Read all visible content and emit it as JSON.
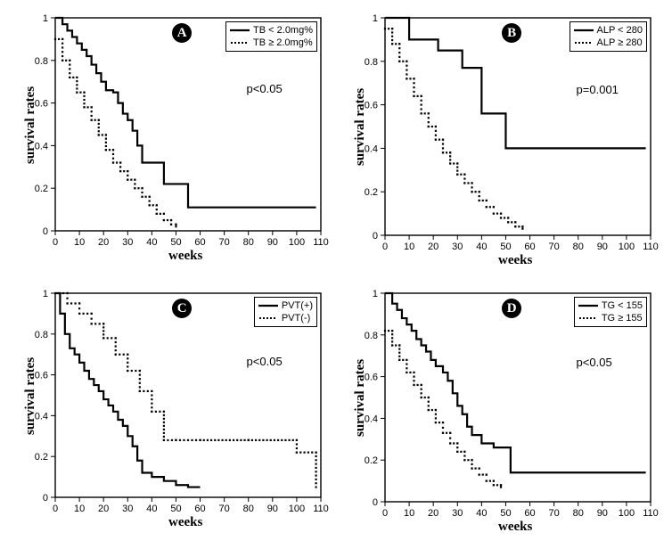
{
  "grid_color": "#000000",
  "background_color": "#ffffff",
  "ylabel": "survival rates",
  "xlabel": "weeks",
  "label_fontsize": 15,
  "tick_fontsize": 11,
  "legend_fontsize": 11,
  "pvalue_fontsize": 13,
  "ylim": [
    0,
    1
  ],
  "ytick_step": 0.2,
  "xlim": [
    0,
    110
  ],
  "xtick_step": 10,
  "solid_line_width": 2.2,
  "dashed_marker_size": 2.2,
  "dashed_marker_gap": 4.0,
  "panels": {
    "A": {
      "badge": "A",
      "pvalue": "p<0.05",
      "legend": [
        {
          "label": "TB < 2.0mg%",
          "style": "solid"
        },
        {
          "label": "TB ≥ 2.0mg%",
          "style": "dashed"
        }
      ],
      "series_solid_color": "#000000",
      "series_dashed_color": "#000000",
      "solid": [
        [
          0,
          1.0
        ],
        [
          3,
          0.97
        ],
        [
          5,
          0.94
        ],
        [
          7,
          0.91
        ],
        [
          9,
          0.88
        ],
        [
          11,
          0.85
        ],
        [
          13,
          0.82
        ],
        [
          15,
          0.78
        ],
        [
          17,
          0.74
        ],
        [
          19,
          0.7
        ],
        [
          21,
          0.66
        ],
        [
          24,
          0.65
        ],
        [
          26,
          0.6
        ],
        [
          28,
          0.55
        ],
        [
          30,
          0.52
        ],
        [
          32,
          0.47
        ],
        [
          34,
          0.4
        ],
        [
          36,
          0.32
        ],
        [
          40,
          0.32
        ],
        [
          45,
          0.22
        ],
        [
          52,
          0.22
        ],
        [
          55,
          0.11
        ],
        [
          108,
          0.11
        ]
      ],
      "dashed": [
        [
          0,
          0.9
        ],
        [
          3,
          0.8
        ],
        [
          6,
          0.72
        ],
        [
          9,
          0.65
        ],
        [
          12,
          0.58
        ],
        [
          15,
          0.52
        ],
        [
          18,
          0.45
        ],
        [
          21,
          0.38
        ],
        [
          24,
          0.32
        ],
        [
          27,
          0.28
        ],
        [
          30,
          0.24
        ],
        [
          33,
          0.2
        ],
        [
          36,
          0.16
        ],
        [
          39,
          0.12
        ],
        [
          42,
          0.08
        ],
        [
          45,
          0.05
        ],
        [
          48,
          0.03
        ],
        [
          50,
          0.02
        ]
      ]
    },
    "B": {
      "badge": "B",
      "pvalue": "p=0.001",
      "legend": [
        {
          "label": "ALP < 280",
          "style": "solid"
        },
        {
          "label": "ALP ≥ 280",
          "style": "dashed"
        }
      ],
      "series_solid_color": "#000000",
      "series_dashed_color": "#000000",
      "solid": [
        [
          0,
          1.0
        ],
        [
          8,
          1.0
        ],
        [
          10,
          0.9
        ],
        [
          20,
          0.9
        ],
        [
          22,
          0.85
        ],
        [
          30,
          0.85
        ],
        [
          32,
          0.77
        ],
        [
          38,
          0.77
        ],
        [
          40,
          0.56
        ],
        [
          48,
          0.56
        ],
        [
          50,
          0.4
        ],
        [
          108,
          0.4
        ]
      ],
      "dashed": [
        [
          0,
          0.95
        ],
        [
          3,
          0.88
        ],
        [
          6,
          0.8
        ],
        [
          9,
          0.72
        ],
        [
          12,
          0.64
        ],
        [
          15,
          0.56
        ],
        [
          18,
          0.5
        ],
        [
          21,
          0.44
        ],
        [
          24,
          0.38
        ],
        [
          27,
          0.33
        ],
        [
          30,
          0.28
        ],
        [
          33,
          0.24
        ],
        [
          36,
          0.2
        ],
        [
          39,
          0.16
        ],
        [
          42,
          0.13
        ],
        [
          45,
          0.1
        ],
        [
          48,
          0.08
        ],
        [
          51,
          0.06
        ],
        [
          54,
          0.04
        ],
        [
          57,
          0.03
        ]
      ]
    },
    "C": {
      "badge": "C",
      "pvalue": "p<0.05",
      "legend": [
        {
          "label": "PVT(+)",
          "style": "solid"
        },
        {
          "label": "PVT(-)",
          "style": "dashed"
        }
      ],
      "series_solid_color": "#000000",
      "series_dashed_color": "#000000",
      "solid": [
        [
          0,
          1.0
        ],
        [
          2,
          0.9
        ],
        [
          4,
          0.8
        ],
        [
          6,
          0.73
        ],
        [
          8,
          0.7
        ],
        [
          10,
          0.66
        ],
        [
          12,
          0.62
        ],
        [
          14,
          0.58
        ],
        [
          16,
          0.55
        ],
        [
          18,
          0.52
        ],
        [
          20,
          0.48
        ],
        [
          22,
          0.45
        ],
        [
          24,
          0.42
        ],
        [
          26,
          0.38
        ],
        [
          28,
          0.35
        ],
        [
          30,
          0.3
        ],
        [
          32,
          0.25
        ],
        [
          34,
          0.18
        ],
        [
          36,
          0.12
        ],
        [
          40,
          0.1
        ],
        [
          45,
          0.08
        ],
        [
          50,
          0.06
        ],
        [
          55,
          0.05
        ],
        [
          60,
          0.05
        ]
      ],
      "dashed": [
        [
          0,
          1.0
        ],
        [
          5,
          0.95
        ],
        [
          10,
          0.9
        ],
        [
          15,
          0.85
        ],
        [
          20,
          0.78
        ],
        [
          25,
          0.7
        ],
        [
          30,
          0.62
        ],
        [
          35,
          0.52
        ],
        [
          40,
          0.42
        ],
        [
          45,
          0.28
        ],
        [
          50,
          0.28
        ],
        [
          60,
          0.28
        ],
        [
          80,
          0.28
        ],
        [
          100,
          0.22
        ],
        [
          108,
          0.05
        ]
      ]
    },
    "D": {
      "badge": "D",
      "pvalue": "p<0.05",
      "legend": [
        {
          "label": "TG < 155",
          "style": "solid"
        },
        {
          "label": "TG ≥ 155",
          "style": "dashed"
        }
      ],
      "series_solid_color": "#000000",
      "series_dashed_color": "#000000",
      "solid": [
        [
          0,
          1.0
        ],
        [
          3,
          0.95
        ],
        [
          5,
          0.92
        ],
        [
          7,
          0.88
        ],
        [
          9,
          0.85
        ],
        [
          11,
          0.82
        ],
        [
          13,
          0.78
        ],
        [
          15,
          0.75
        ],
        [
          17,
          0.72
        ],
        [
          19,
          0.68
        ],
        [
          21,
          0.65
        ],
        [
          24,
          0.62
        ],
        [
          26,
          0.58
        ],
        [
          28,
          0.52
        ],
        [
          30,
          0.46
        ],
        [
          32,
          0.42
        ],
        [
          34,
          0.36
        ],
        [
          36,
          0.32
        ],
        [
          40,
          0.28
        ],
        [
          45,
          0.26
        ],
        [
          50,
          0.26
        ],
        [
          52,
          0.14
        ],
        [
          108,
          0.14
        ]
      ],
      "dashed": [
        [
          0,
          0.82
        ],
        [
          3,
          0.75
        ],
        [
          6,
          0.68
        ],
        [
          9,
          0.62
        ],
        [
          12,
          0.56
        ],
        [
          15,
          0.5
        ],
        [
          18,
          0.44
        ],
        [
          21,
          0.38
        ],
        [
          24,
          0.33
        ],
        [
          27,
          0.28
        ],
        [
          30,
          0.24
        ],
        [
          33,
          0.2
        ],
        [
          36,
          0.16
        ],
        [
          39,
          0.13
        ],
        [
          42,
          0.1
        ],
        [
          45,
          0.08
        ],
        [
          48,
          0.07
        ]
      ]
    }
  }
}
